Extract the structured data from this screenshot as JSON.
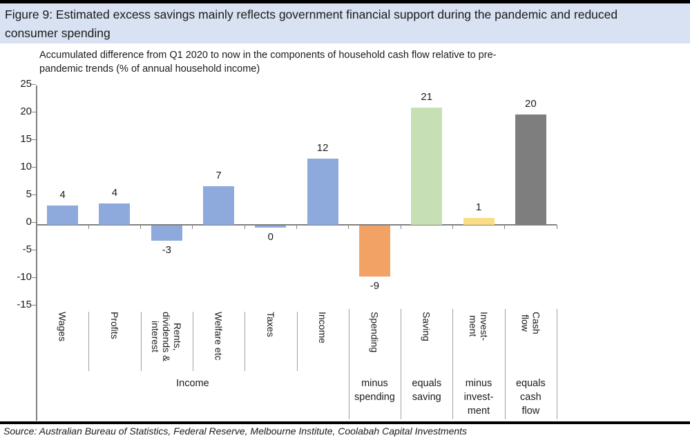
{
  "figure": {
    "title": "Figure 9: Estimated excess savings mainly reflects government financial support during the pandemic and reduced\nconsumer spending",
    "subtitle": "Accumulated difference from Q1 2020 to now in the components of household cash flow relative to pre-\npandemic trends (% of annual household income)",
    "source": "Source: Australian Bureau of Statistics, Federal Reserve, Melbourne Institute, Coolabah Capital Investments"
  },
  "colors": {
    "title_bar_bg": "#D9E2F2",
    "bar_blue": "#8EA9DB",
    "bar_orange": "#F2A265",
    "bar_green": "#C6DFB4",
    "bar_yellow": "#FBDD86",
    "bar_gray": "#7E7E7E",
    "axis": "#808080",
    "divider": "#A0A0A0",
    "text": "#1A1A1A"
  },
  "chart_data": {
    "type": "bar",
    "title": "Accumulated difference from Q1 2020 to now in the components of household cash flow relative to pre-pandemic trends (% of annual household income)",
    "categories": [
      "Wages",
      "Profits",
      "Rents, dividends & interest",
      "Welfare etc",
      "Taxes",
      "Income",
      "Spending",
      "Saving",
      "Investment",
      "Cash flow"
    ],
    "category_label_lines": [
      [
        "Wages"
      ],
      [
        "Profits"
      ],
      [
        "Rents,",
        "dividends &",
        "interest"
      ],
      [
        "Welfare etc"
      ],
      [
        "Taxes"
      ],
      [
        "Income"
      ],
      [
        "Spending"
      ],
      [
        "Saving"
      ],
      [
        "Invest-",
        "ment"
      ],
      [
        "Cash",
        "flow"
      ]
    ],
    "values": [
      4,
      4,
      -3,
      7,
      0,
      12,
      -9,
      21,
      1,
      20
    ],
    "value_labels": [
      "4",
      "4",
      "-3",
      "7",
      "0",
      "12",
      "-9",
      "21",
      "1",
      "20"
    ],
    "bar_heights_units": [
      3.5,
      3.9,
      -2.7,
      7.0,
      -0.35,
      12.0,
      -9.3,
      21.2,
      1.3,
      20.0
    ],
    "bar_color_keys": [
      "bar_blue",
      "bar_blue",
      "bar_blue",
      "bar_blue",
      "bar_blue",
      "bar_blue",
      "bar_orange",
      "bar_green",
      "bar_yellow",
      "bar_gray"
    ],
    "yticks": [
      25,
      20,
      15,
      10,
      5,
      0,
      -5,
      -10,
      -15
    ],
    "ylim": [
      -15,
      25
    ],
    "xlabel": "",
    "ylabel": "",
    "grid": false,
    "legend": false,
    "groups": [
      {
        "label": "Income",
        "lines": [
          "Income"
        ],
        "start": 0,
        "span": 6
      },
      {
        "label": "minus spending",
        "lines": [
          "minus",
          "spending"
        ],
        "start": 6,
        "span": 1
      },
      {
        "label": "equals saving",
        "lines": [
          "equals",
          "saving"
        ],
        "start": 7,
        "span": 1
      },
      {
        "label": "minus investment",
        "lines": [
          "minus",
          "invest-",
          "ment"
        ],
        "start": 8,
        "span": 1
      },
      {
        "label": "equals cash flow",
        "lines": [
          "equals",
          "cash",
          "flow"
        ],
        "start": 9,
        "span": 1
      }
    ]
  }
}
